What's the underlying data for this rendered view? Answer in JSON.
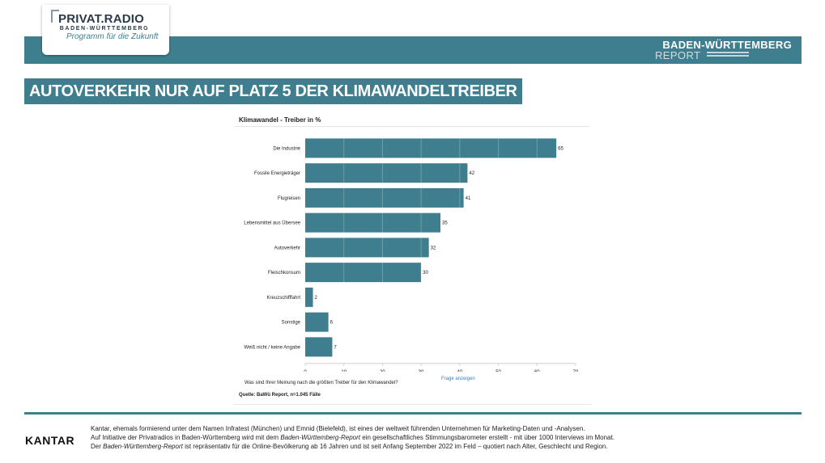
{
  "header": {
    "logo_title": "PRIVAT.RADIO",
    "logo_sub": "BADEN-WÜRTTEMBERG",
    "logo_tagline": "Programm für die Zukunft",
    "brand_line1": "BADEN-WÜRTTEMBERG",
    "brand_line2": "REPORT"
  },
  "headline": "AUTOVERKEHR NUR AUF PLATZ 5 DER KLIMAWANDELTREIBER",
  "chart": {
    "title": "Klimawandel - Treiber in %",
    "question": "Was sind Ihrer Meinung nach die größten Treiber für den Klimawandel?",
    "show_question_link": "Frage anzeigen",
    "source": "Quelle: BaWü Report, n=1.045 Fälle"
  },
  "chart_data": {
    "type": "bar",
    "orientation": "horizontal",
    "title": "Klimawandel - Treiber in %",
    "categories": [
      "Die Industrie",
      "Fossile Energieträger",
      "Flugreisen",
      "Lebensmittel aus Übersee",
      "Autoverkehr",
      "Fleischkonsum",
      "Kreuzschifffahrt",
      "Sonstige",
      "Weiß nicht / keine Angabe"
    ],
    "values": [
      65,
      42,
      41,
      35,
      32,
      30,
      2,
      6,
      7
    ],
    "xlim": [
      0,
      70
    ],
    "xticks": [
      0,
      10,
      20,
      30,
      40,
      50,
      60,
      70
    ],
    "bar_color": "#3f7e8f",
    "grid": true
  },
  "footer": {
    "logo": "KANTAR",
    "line1": "Kantar, ehemals formierend unter dem Namen Infratest (München) und Emnid  (Bielefeld), ist eines der weltweit führenden Unternehmen für Marketing-Daten und -Analysen.",
    "line2_a": "Auf Initiative der Privatradios in Baden-Württemberg wird mit dem ",
    "line2_em": "Baden-Württemberg-Report",
    "line2_b": " ein gesellschaftliches Stimmungsbarometer erstellt - mit über 1000 Interviews im Monat.",
    "line3_a": "Der ",
    "line3_em": "Baden-Württemberg-Report",
    "line3_b": " ist repräsentativ für die Online-Bevölkerung ab 16 Jahren und ist seit Anfang September 2022 im Feld – quotiert nach Alter, Geschlecht und Region."
  },
  "colors": {
    "accent": "#3f7e8f",
    "link": "#3a7fb8"
  }
}
